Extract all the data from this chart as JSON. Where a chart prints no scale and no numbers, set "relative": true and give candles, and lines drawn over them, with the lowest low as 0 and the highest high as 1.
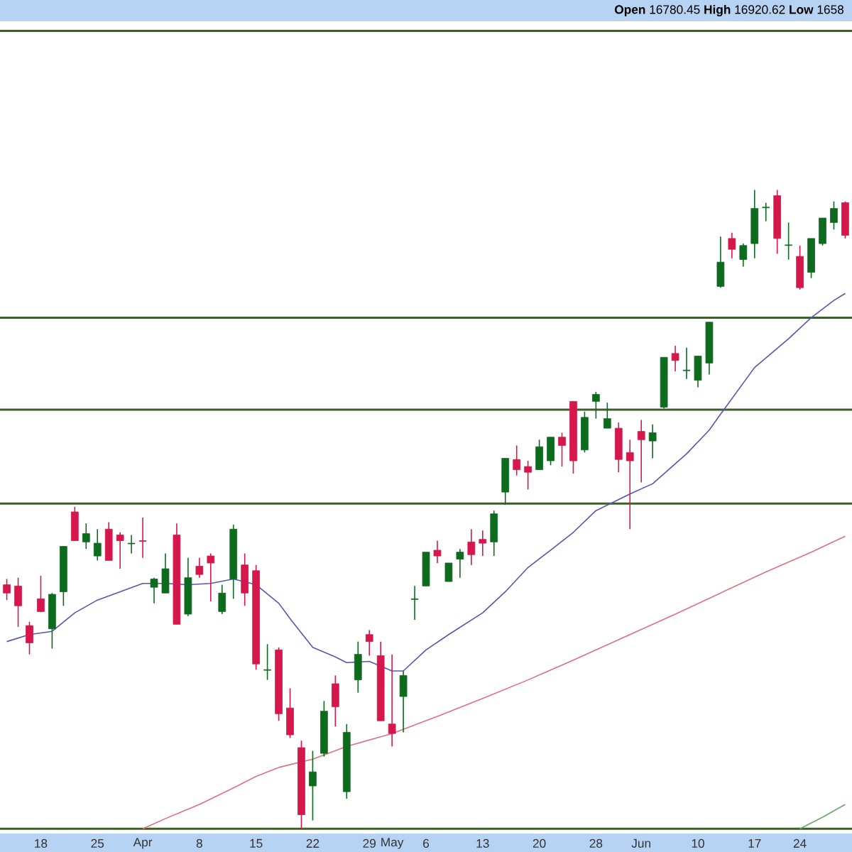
{
  "chart_data": {
    "type": "candlestick",
    "relative": true,
    "tick_labels": "x",
    "categories": [
      null,
      null,
      null,
      "18",
      null,
      null,
      null,
      null,
      "25",
      null,
      null,
      null,
      "Apr",
      null,
      null,
      null,
      null,
      "8",
      null,
      null,
      null,
      null,
      "15",
      null,
      null,
      null,
      null,
      "22",
      null,
      null,
      null,
      null,
      "29",
      null,
      "May",
      null,
      null,
      "6",
      null,
      null,
      null,
      null,
      "13",
      null,
      null,
      null,
      null,
      "20",
      null,
      null,
      null,
      null,
      "28",
      null,
      null,
      null,
      "Jun",
      null,
      null,
      null,
      null,
      "10",
      null,
      null,
      null,
      null,
      "17",
      null,
      null,
      null,
      "24",
      null,
      null,
      null,
      null
    ],
    "ohlc": [
      [
        0.382,
        0.391,
        0.358,
        0.369
      ],
      [
        0.38,
        0.393,
        0.316,
        0.349
      ],
      [
        0.318,
        0.324,
        0.273,
        0.291
      ],
      [
        0.36,
        0.396,
        0.339,
        0.34
      ],
      [
        0.313,
        0.369,
        0.282,
        0.367
      ],
      [
        0.371,
        0.442,
        0.349,
        0.442
      ],
      [
        0.496,
        0.504,
        0.451,
        0.451
      ],
      [
        0.449,
        0.478,
        0.438,
        0.462
      ],
      [
        0.427,
        0.469,
        0.42,
        0.447
      ],
      [
        0.469,
        0.48,
        0.42,
        0.42
      ],
      [
        0.46,
        0.464,
        0.407,
        0.451
      ],
      [
        0.446,
        0.46,
        0.431,
        0.447
      ],
      [
        0.451,
        0.487,
        0.424,
        0.45
      ],
      [
        0.378,
        0.393,
        0.353,
        0.391
      ],
      [
        0.369,
        0.431,
        0.369,
        0.407
      ],
      [
        0.46,
        0.478,
        0.32,
        0.32
      ],
      [
        0.336,
        0.424,
        0.333,
        0.393
      ],
      [
        0.411,
        0.424,
        0.393,
        0.398
      ],
      [
        0.427,
        0.431,
        0.356,
        0.416
      ],
      [
        0.34,
        0.382,
        0.336,
        0.369
      ],
      [
        0.391,
        0.476,
        0.36,
        0.469
      ],
      [
        0.413,
        0.431,
        0.349,
        0.369
      ],
      [
        0.404,
        0.413,
        0.249,
        0.258
      ],
      [
        0.248,
        0.289,
        0.233,
        0.249
      ],
      [
        0.28,
        0.284,
        0.169,
        0.18
      ],
      [
        0.189,
        0.22,
        0.142,
        0.147
      ],
      [
        0.127,
        0.138,
        0,
        0.022
      ],
      [
        0.067,
        0.122,
        0.013,
        0.089
      ],
      [
        0.118,
        0.2,
        0.113,
        0.184
      ],
      [
        0.227,
        0.24,
        0.16,
        0.191
      ],
      [
        0.058,
        0.164,
        0.047,
        0.151
      ],
      [
        0.233,
        0.293,
        0.213,
        0.273
      ],
      [
        0.304,
        0.311,
        0.271,
        0.293
      ],
      [
        0.271,
        0.293,
        0.169,
        0.169
      ],
      [
        0.164,
        0.273,
        0.129,
        0.149
      ],
      [
        0.207,
        0.247,
        0.151,
        0.24
      ],
      [
        0.359,
        0.38,
        0.327,
        0.36
      ],
      [
        0.38,
        0.433,
        0.38,
        0.433
      ],
      [
        0.436,
        0.451,
        0.416,
        0.427
      ],
      [
        0.387,
        0.416,
        0.387,
        0.416
      ],
      [
        0.422,
        0.438,
        0.393,
        0.433
      ],
      [
        0.449,
        0.469,
        0.413,
        0.429
      ],
      [
        0.453,
        0.467,
        0.427,
        0.447
      ],
      [
        0.449,
        0.498,
        0.427,
        0.493
      ],
      [
        0.527,
        0.58,
        0.507,
        0.58
      ],
      [
        0.578,
        0.6,
        0.553,
        0.562
      ],
      [
        0.567,
        0.576,
        0.531,
        0.558
      ],
      [
        0.562,
        0.609,
        0.562,
        0.598
      ],
      [
        0.576,
        0.613,
        0.569,
        0.613
      ],
      [
        0.613,
        0.62,
        0.567,
        0.6
      ],
      [
        0.669,
        0.669,
        0.556,
        0.576
      ],
      [
        0.593,
        0.653,
        0.589,
        0.644
      ],
      [
        0.669,
        0.684,
        0.642,
        0.68
      ],
      [
        0.627,
        0.667,
        0.627,
        0.642
      ],
      [
        0.627,
        0.636,
        0.558,
        0.578
      ],
      [
        0.589,
        0.609,
        0.469,
        0.576
      ],
      [
        0.622,
        0.64,
        0.542,
        0.609
      ],
      [
        0.607,
        0.633,
        0.58,
        0.62
      ],
      [
        0.66,
        0.738,
        0.658,
        0.738
      ],
      [
        0.744,
        0.756,
        0.716,
        0.733
      ],
      [
        0.717,
        0.753,
        0.704,
        0.718
      ],
      [
        0.702,
        0.74,
        0.691,
        0.74
      ],
      [
        0.729,
        0.793,
        0.711,
        0.793
      ],
      [
        0.849,
        0.927,
        0.847,
        0.887
      ],
      [
        0.924,
        0.933,
        0.893,
        0.907
      ],
      [
        0.891,
        0.916,
        0.88,
        0.913
      ],
      [
        0.916,
        1,
        0.893,
        0.971
      ],
      [
        0.972,
        0.98,
        0.951,
        0.973
      ],
      [
        0.991,
        1,
        0.9,
        0.924
      ],
      [
        0.913,
        0.949,
        0.891,
        0.914
      ],
      [
        0.896,
        0.913,
        0.844,
        0.847
      ],
      [
        0.871,
        0.924,
        0.862,
        0.924
      ],
      [
        0.916,
        0.956,
        0.913,
        0.956
      ],
      [
        0.949,
        0.982,
        0.938,
        0.971
      ],
      [
        0.98,
        0.982,
        0.924,
        0.929
      ]
    ],
    "colors": [
      "#d5174c",
      "#d5174c",
      "#d5174c",
      "#d5174c",
      "#0c6b1d",
      "#0c6b1d",
      "#d5174c",
      "#0c6b1d",
      "#0c6b1d",
      "#d5174c",
      "#d5174c",
      "#0c6b1d",
      "#d5174c",
      "#0c6b1d",
      "#0c6b1d",
      "#d5174c",
      "#0c6b1d",
      "#d5174c",
      "#d5174c",
      "#0c6b1d",
      "#0c6b1d",
      "#d5174c",
      "#d5174c",
      "#0c6b1d",
      "#d5174c",
      "#d5174c",
      "#d5174c",
      "#0c6b1d",
      "#0c6b1d",
      "#d5174c",
      "#0c6b1d",
      "#0c6b1d",
      "#d5174c",
      "#d5174c",
      "#d5174c",
      "#0c6b1d",
      "#0c6b1d",
      "#0c6b1d",
      "#d5174c",
      "#0c6b1d",
      "#0c6b1d",
      "#d5174c",
      "#d5174c",
      "#0c6b1d",
      "#0c6b1d",
      "#d5174c",
      "#d5174c",
      "#0c6b1d",
      "#0c6b1d",
      "#d5174c",
      "#d5174c",
      "#0c6b1d",
      "#0c6b1d",
      "#0c6b1d",
      "#d5174c",
      "#d5174c",
      "#d5174c",
      "#0c6b1d",
      "#0c6b1d",
      "#d5174c",
      "#0c6b1d",
      "#0c6b1d",
      "#0c6b1d",
      "#0c6b1d",
      "#d5174c",
      "#0c6b1d",
      "#0c6b1d",
      "#0c6b1d",
      "#d5174c",
      "#0c6b1d",
      "#d5174c",
      "#0c6b1d",
      "#0c6b1d",
      "#0c6b1d",
      "#d5174c"
    ],
    "series": [
      {
        "type": "line",
        "color": "#5656b0",
        "values": [
          0.293,
          null,
          0.304,
          null,
          0.309,
          null,
          0.338,
          null,
          0.358,
          null,
          0.371,
          null,
          0.384,
          null,
          0.384,
          null,
          0.382,
          null,
          0.384,
          null,
          0.391,
          null,
          0.382,
          null,
          0.353,
          0.329,
          null,
          0.284,
          null,
          0.269,
          0.26,
          null,
          0.262,
          null,
          0.247,
          0.247,
          null,
          0.28,
          null,
          0.304,
          null,
          null,
          0.338,
          null,
          0.371,
          null,
          0.409,
          null,
          0.436,
          null,
          0.464,
          null,
          0.498,
          null,
          null,
          0.524,
          null,
          0.54,
          null,
          null,
          0.587,
          null,
          0.624,
          0.649,
          null,
          null,
          0.722,
          null,
          null,
          0.767,
          null,
          0.8,
          null,
          0.827,
          0.838
        ]
      },
      {
        "type": "line",
        "color": "#e0707e",
        "values": [
          null,
          null,
          null,
          null,
          null,
          null,
          null,
          null,
          null,
          null,
          null,
          null,
          0,
          null,
          0.016,
          null,
          null,
          0.038,
          null,
          null,
          0.064,
          null,
          0.082,
          null,
          0.096,
          null,
          null,
          0.109,
          null,
          null,
          0.129,
          null,
          null,
          null,
          0.149,
          null,
          null,
          null,
          0.176,
          null,
          null,
          null,
          0.204,
          null,
          null,
          null,
          0.233,
          null,
          null,
          null,
          0.264,
          null,
          null,
          null,
          null,
          0.304,
          null,
          null,
          null,
          0.336,
          null,
          null,
          null,
          0.369,
          null,
          null,
          null,
          0.402,
          null,
          null,
          null,
          0.433,
          null,
          null,
          0.458
        ]
      },
      {
        "type": "line",
        "color": "#6aa86a",
        "values": [
          null,
          null,
          null,
          null,
          null,
          null,
          null,
          null,
          null,
          null,
          null,
          null,
          null,
          null,
          null,
          null,
          null,
          null,
          null,
          null,
          null,
          null,
          null,
          null,
          null,
          null,
          null,
          null,
          null,
          null,
          null,
          null,
          null,
          null,
          null,
          null,
          null,
          null,
          null,
          null,
          null,
          null,
          null,
          null,
          null,
          null,
          null,
          null,
          null,
          null,
          null,
          null,
          null,
          null,
          null,
          null,
          null,
          null,
          null,
          null,
          null,
          null,
          null,
          null,
          null,
          null,
          null,
          null,
          null,
          null,
          0,
          null,
          0.018,
          null,
          0.038
        ]
      }
    ],
    "ref_lines": [
      {
        "axis": "y",
        "value": 0,
        "color": "#3d5e2c"
      },
      {
        "axis": "y",
        "value": 0.509,
        "color": "#3d5e2c"
      },
      {
        "axis": "y",
        "value": 0.656,
        "color": "#3d5e2c"
      },
      {
        "axis": "y",
        "value": 0.8,
        "color": "#3d5e2c"
      },
      {
        "axis": "y",
        "value": 1.249,
        "color": "#3d5e2c"
      }
    ],
    "annotations": [
      "**Open** 16780.45  **High** 16920.62  **Low** 1658"
    ]
  }
}
